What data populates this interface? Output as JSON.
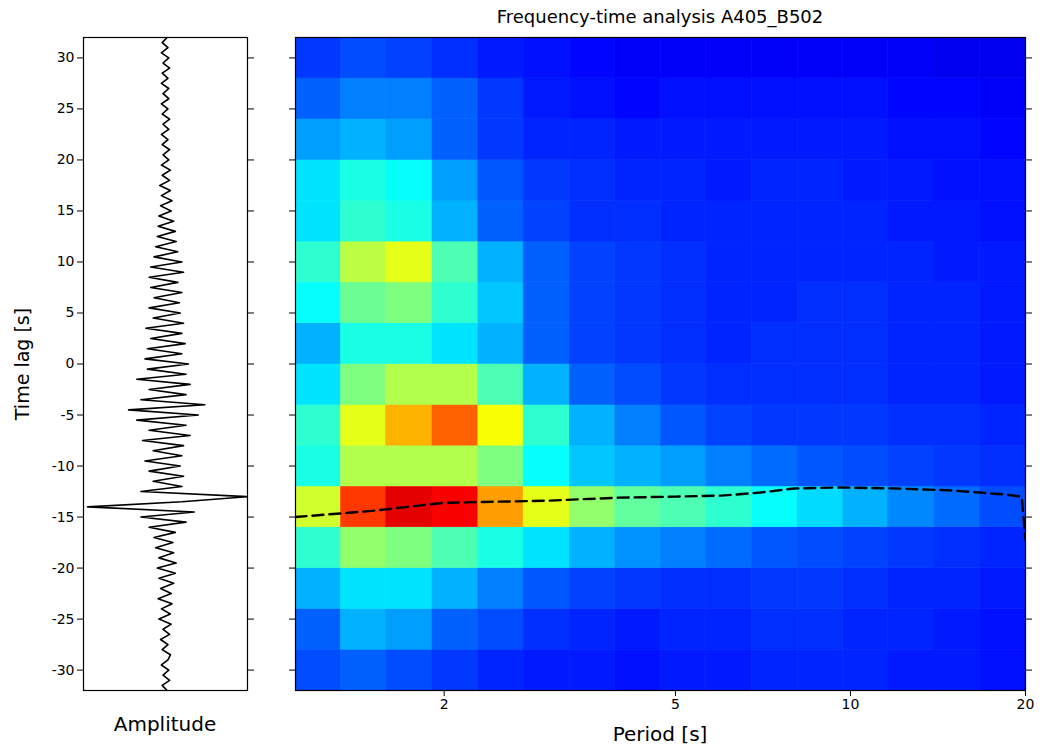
{
  "chart_data": [
    {
      "type": "line",
      "x_label": "Amplitude",
      "y_label": "Time lag [s]",
      "color": "#000000",
      "tick_labels": "y",
      "xlim": [
        -1,
        1
      ],
      "ylim": [
        -32,
        32
      ],
      "yticks": [
        -30,
        -25,
        -20,
        -15,
        -10,
        -5,
        0,
        5,
        10,
        15,
        20,
        25,
        30
      ],
      "time_lag": [
        -32,
        -31.5,
        -31,
        -30.5,
        -30,
        -29.5,
        -29,
        -28.5,
        -28,
        -27.5,
        -27,
        -26.5,
        -26,
        -25.5,
        -25,
        -24.5,
        -24,
        -23.5,
        -23,
        -22.5,
        -22,
        -21.5,
        -21,
        -20.5,
        -20,
        -19.5,
        -19,
        -18.5,
        -18,
        -17.5,
        -17,
        -16.5,
        -16,
        -15.5,
        -15,
        -14.5,
        -14,
        -13.5,
        -13,
        -12.5,
        -12,
        -11.5,
        -11,
        -10.5,
        -10,
        -9.5,
        -9,
        -8.5,
        -8,
        -7.5,
        -7,
        -6.5,
        -6,
        -5.5,
        -5,
        -4.5,
        -4,
        -3.5,
        -3,
        -2.5,
        -2,
        -1.5,
        -1,
        -0.5,
        0,
        0.5,
        1,
        1.5,
        2,
        2.5,
        3,
        3.5,
        4,
        4.5,
        5,
        5.5,
        6,
        6.5,
        7,
        7.5,
        8,
        8.5,
        9,
        9.5,
        10,
        10.5,
        11,
        11.5,
        12,
        12.5,
        13,
        13.5,
        14,
        14.5,
        15,
        15.5,
        16,
        16.5,
        17,
        17.5,
        18,
        18.5,
        19,
        19.5,
        20,
        20.5,
        21,
        21.5,
        22,
        22.5,
        23,
        23.5,
        24,
        24.5,
        25,
        25.5,
        26,
        26.5,
        27,
        27.5,
        28,
        28.5,
        29,
        29.5,
        30,
        30.5,
        31,
        31.5,
        32
      ],
      "amplitude": [
        0.02,
        -0.04,
        0.05,
        -0.03,
        0.04,
        -0.05,
        0.03,
        0.06,
        -0.04,
        0.03,
        -0.06,
        0.05,
        -0.03,
        0.07,
        -0.08,
        0.06,
        -0.05,
        0.08,
        -0.09,
        0.07,
        -0.06,
        0.1,
        -0.08,
        0.12,
        -0.1,
        0.13,
        -0.08,
        0.1,
        -0.12,
        0.09,
        -0.14,
        0.12,
        -0.2,
        0.25,
        -0.3,
        0.35,
        -0.95,
        0.2,
        1.0,
        -0.3,
        0.2,
        -0.15,
        0.22,
        -0.2,
        0.18,
        -0.25,
        0.2,
        -0.15,
        0.22,
        -0.28,
        0.3,
        -0.2,
        0.25,
        -0.35,
        0.4,
        -0.45,
        0.48,
        -0.3,
        0.25,
        -0.2,
        0.3,
        -0.35,
        0.25,
        -0.22,
        0.28,
        -0.25,
        0.2,
        -0.22,
        0.24,
        -0.18,
        0.2,
        -0.24,
        0.22,
        -0.15,
        0.18,
        -0.2,
        0.17,
        -0.14,
        0.2,
        -0.18,
        0.15,
        -0.2,
        0.22,
        -0.18,
        0.2,
        -0.14,
        0.15,
        -0.12,
        0.13,
        -0.1,
        0.12,
        -0.09,
        0.1,
        -0.08,
        0.07,
        -0.06,
        0.08,
        -0.05,
        0.06,
        -0.07,
        0.05,
        -0.04,
        0.06,
        -0.05,
        0.04,
        -0.03,
        0.05,
        -0.04,
        0.03,
        -0.05,
        0.04,
        -0.03,
        0.05,
        -0.04,
        0.03,
        -0.05,
        0.04,
        -0.03,
        0.04,
        -0.05,
        0.03,
        -0.04,
        0.05,
        -0.03,
        0.04,
        -0.05,
        0.03,
        -0.04,
        0.02
      ]
    },
    {
      "type": "heatmap",
      "title": "Frequency-time analysis A405_B502",
      "x_label": "Period [s]",
      "log": "x",
      "tick_labels": "x",
      "xlim": [
        1.11,
        20
      ],
      "xticks": [
        2,
        5,
        10,
        20
      ],
      "ylim": [
        -32,
        32
      ],
      "yticks": [
        -30,
        -25,
        -20,
        -15,
        -10,
        -5,
        0,
        5,
        10,
        15,
        20,
        25,
        30
      ],
      "zlim": [
        0,
        1
      ],
      "x_edges": [
        1.11,
        1.33,
        1.59,
        1.91,
        2.29,
        2.74,
        3.29,
        3.94,
        4.72,
        5.65,
        6.77,
        8.11,
        9.72,
        11.6,
        13.95,
        16.7,
        20
      ],
      "y_edges": [
        -32,
        -28,
        -24,
        -20,
        -16,
        -12,
        -8,
        -4,
        0,
        4,
        8,
        12,
        16,
        20,
        24,
        28,
        32
      ],
      "cells": [
        [
          0.2,
          0.22,
          0.2,
          0.18,
          0.16,
          0.15,
          0.15,
          0.14,
          0.15,
          0.15,
          0.16,
          0.16,
          0.16,
          0.15,
          0.15,
          0.14
        ],
        [
          0.22,
          0.3,
          0.28,
          0.22,
          0.2,
          0.17,
          0.16,
          0.15,
          0.16,
          0.16,
          0.17,
          0.17,
          0.16,
          0.16,
          0.15,
          0.14
        ],
        [
          0.3,
          0.35,
          0.35,
          0.3,
          0.25,
          0.21,
          0.19,
          0.18,
          0.17,
          0.17,
          0.18,
          0.18,
          0.17,
          0.16,
          0.16,
          0.15
        ],
        [
          0.42,
          0.52,
          0.5,
          0.45,
          0.4,
          0.35,
          0.3,
          0.27,
          0.25,
          0.23,
          0.21,
          0.2,
          0.19,
          0.18,
          0.17,
          0.16
        ],
        [
          0.58,
          0.82,
          0.9,
          0.88,
          0.72,
          0.6,
          0.52,
          0.47,
          0.45,
          0.42,
          0.38,
          0.34,
          0.3,
          0.26,
          0.23,
          0.2
        ],
        [
          0.4,
          0.55,
          0.55,
          0.55,
          0.5,
          0.38,
          0.32,
          0.3,
          0.28,
          0.25,
          0.23,
          0.21,
          0.2,
          0.19,
          0.18,
          0.17
        ],
        [
          0.42,
          0.6,
          0.7,
          0.78,
          0.62,
          0.42,
          0.3,
          0.25,
          0.21,
          0.19,
          0.18,
          0.18,
          0.18,
          0.17,
          0.17,
          0.16
        ],
        [
          0.35,
          0.5,
          0.55,
          0.55,
          0.45,
          0.3,
          0.22,
          0.2,
          0.18,
          0.17,
          0.17,
          0.17,
          0.17,
          0.16,
          0.16,
          0.15
        ],
        [
          0.3,
          0.4,
          0.4,
          0.35,
          0.3,
          0.22,
          0.19,
          0.18,
          0.17,
          0.16,
          0.17,
          0.17,
          0.17,
          0.16,
          0.16,
          0.15
        ],
        [
          0.38,
          0.48,
          0.5,
          0.42,
          0.32,
          0.22,
          0.19,
          0.18,
          0.17,
          0.16,
          0.16,
          0.17,
          0.17,
          0.16,
          0.16,
          0.15
        ],
        [
          0.42,
          0.56,
          0.6,
          0.45,
          0.3,
          0.22,
          0.19,
          0.18,
          0.17,
          0.16,
          0.16,
          0.16,
          0.16,
          0.16,
          0.15,
          0.15
        ],
        [
          0.35,
          0.42,
          0.4,
          0.3,
          0.22,
          0.19,
          0.17,
          0.17,
          0.16,
          0.16,
          0.16,
          0.16,
          0.16,
          0.15,
          0.15,
          0.14
        ],
        [
          0.35,
          0.4,
          0.38,
          0.28,
          0.21,
          0.18,
          0.17,
          0.16,
          0.16,
          0.15,
          0.16,
          0.16,
          0.15,
          0.15,
          0.14,
          0.14
        ],
        [
          0.28,
          0.3,
          0.28,
          0.22,
          0.18,
          0.16,
          0.16,
          0.15,
          0.15,
          0.15,
          0.15,
          0.15,
          0.15,
          0.14,
          0.14,
          0.13
        ],
        [
          0.22,
          0.25,
          0.25,
          0.22,
          0.18,
          0.15,
          0.14,
          0.13,
          0.14,
          0.14,
          0.14,
          0.14,
          0.14,
          0.13,
          0.13,
          0.12
        ],
        [
          0.18,
          0.2,
          0.19,
          0.17,
          0.15,
          0.14,
          0.13,
          0.12,
          0.12,
          0.12,
          0.12,
          0.12,
          0.12,
          0.12,
          0.11,
          0.11
        ]
      ],
      "curve": {
        "color": "#000000",
        "line_style": "dashed",
        "x": [
          1.11,
          1.5,
          2,
          3,
          4,
          5,
          6,
          7,
          8,
          9.5,
          12,
          15,
          18.5,
          19.7,
          20
        ],
        "y": [
          -15.0,
          -14.4,
          -13.6,
          -13.4,
          -13.1,
          -13.0,
          -12.9,
          -12.6,
          -12.2,
          -12.1,
          -12.2,
          -12.4,
          -12.8,
          -13.0,
          -17.2
        ]
      }
    }
  ]
}
